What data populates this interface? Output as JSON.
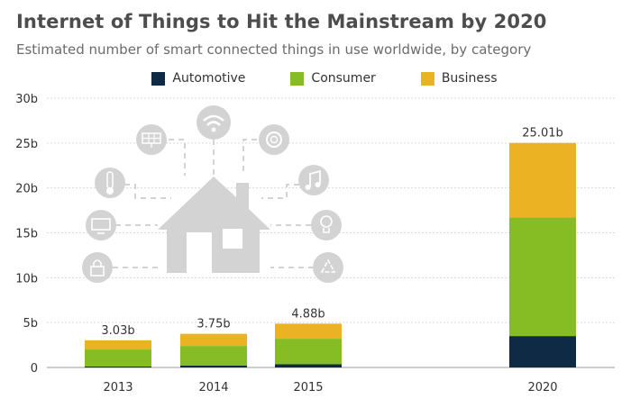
{
  "title": "Internet of Things to Hit the Mainstream by 2020",
  "subtitle": "Estimated number of smart connected things in use worldwide, by category",
  "colors": {
    "automotive": "#0e2a44",
    "consumer": "#86bc24",
    "business": "#ebb323",
    "grid": "#d9d9d9",
    "illustration": "#d3d3d3"
  },
  "icons": [
    "house-icon",
    "wifi-icon",
    "solar-panel-icon",
    "smoke-detector-icon",
    "thermometer-icon",
    "music-note-icon",
    "monitor-icon",
    "light-bulb-icon",
    "lock-icon",
    "recycle-icon"
  ],
  "chart_data": {
    "type": "bar",
    "stacked": true,
    "title": "Internet of Things to Hit the Mainstream by 2020",
    "subtitle": "Estimated number of smart connected things in use worldwide, by category",
    "categories": [
      "2013",
      "2014",
      "2015",
      "2020"
    ],
    "series": [
      {
        "name": "Automotive",
        "values": [
          0.1,
          0.2,
          0.35,
          3.5
        ]
      },
      {
        "name": "Consumer",
        "values": [
          1.9,
          2.2,
          2.85,
          13.2
        ]
      },
      {
        "name": "Business",
        "values": [
          1.03,
          1.35,
          1.68,
          8.31
        ]
      }
    ],
    "totals_labels": [
      "3.03b",
      "3.75b",
      "4.88b",
      "25.01b"
    ],
    "yticks": [
      "0",
      "5b",
      "10b",
      "15b",
      "20b",
      "25b",
      "30b"
    ],
    "ylim": [
      0,
      30
    ],
    "legend_position": "top-center",
    "grid": true
  }
}
